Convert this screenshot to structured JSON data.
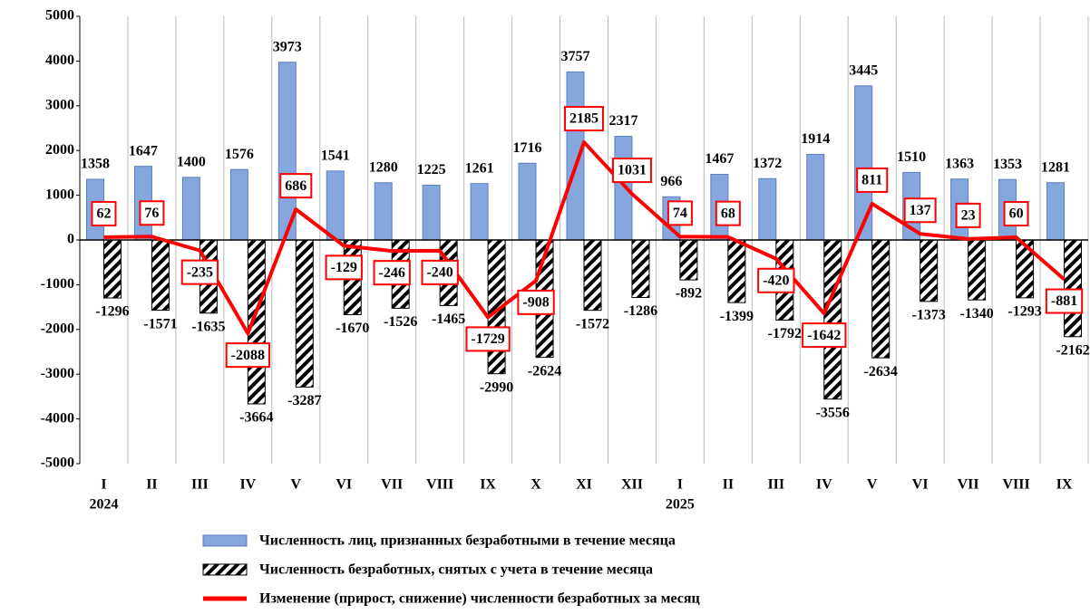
{
  "chart_data": {
    "type": "bar-line",
    "categories": [
      "I",
      "II",
      "III",
      "IV",
      "V",
      "VI",
      "VII",
      "VIII",
      "IX",
      "X",
      "XI",
      "XII",
      "I",
      "II",
      "III",
      "IV",
      "V",
      "VI",
      "VII",
      "VIII",
      "IX"
    ],
    "category_years": [
      "2024",
      null,
      null,
      null,
      null,
      null,
      null,
      null,
      null,
      null,
      null,
      null,
      "2025",
      null,
      null,
      null,
      null,
      null,
      null,
      null,
      null
    ],
    "ylim": [
      -5000,
      5000
    ],
    "yticks": [
      -5000,
      -4000,
      -3000,
      -2000,
      -1000,
      0,
      1000,
      2000,
      3000,
      4000,
      5000
    ],
    "series": [
      {
        "name": "Численность лиц, признанных безработными в течение месяца",
        "kind": "bar",
        "color": "#86a6de",
        "values": [
          1358,
          1647,
          1400,
          1576,
          3973,
          1541,
          1280,
          1225,
          1261,
          1716,
          3757,
          2317,
          966,
          1467,
          1372,
          1914,
          3445,
          1510,
          1363,
          1353,
          1281
        ]
      },
      {
        "name": "Численность безработных, снятых с учета в течение месяца",
        "kind": "bar",
        "color": "#000000",
        "fill": "hatch",
        "values": [
          -1296,
          -1571,
          -1635,
          -3664,
          -3287,
          -1670,
          -1526,
          -1465,
          -2990,
          -2624,
          -1572,
          -1286,
          -892,
          -1399,
          -1792,
          -3556,
          -2634,
          -1373,
          -1340,
          -1293,
          -2162
        ]
      },
      {
        "name": "Изменение (прирост, снижение) численности безработных за месяц",
        "kind": "line",
        "color": "#ff0000",
        "values": [
          62,
          76,
          -235,
          -2088,
          686,
          -129,
          -246,
          -240,
          -1729,
          -908,
          2185,
          1031,
          74,
          68,
          -420,
          -1642,
          811,
          137,
          23,
          60,
          -881
        ]
      }
    ]
  }
}
